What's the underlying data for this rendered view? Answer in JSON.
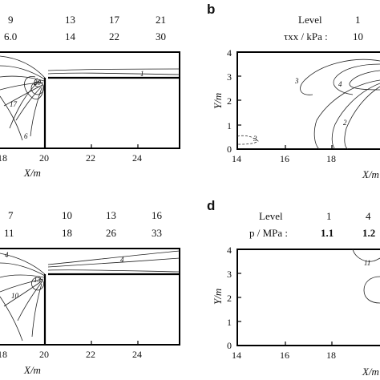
{
  "panel_a": {
    "levels_row": [
      "9",
      "13",
      "17",
      "21"
    ],
    "values_row": [
      "6.0",
      "14",
      "22",
      "30"
    ],
    "x_ticks": [
      "18",
      "20",
      "22",
      "24"
    ],
    "x_axis_label": "X/m",
    "contour_labels": [
      "1",
      "20",
      "17",
      "6"
    ]
  },
  "panel_b": {
    "label": "b",
    "levels_title": "Level",
    "values_title": "τxx / kPa :",
    "levels_row": [
      "1"
    ],
    "values_row": [
      "10"
    ],
    "y_ticks": [
      "4",
      "3",
      "2",
      "1",
      "0"
    ],
    "y_axis_label": "Y/m",
    "x_ticks": [
      "14",
      "16",
      "18"
    ],
    "x_axis_label": "X/m",
    "contour_labels": [
      "4",
      "3",
      "2",
      "3"
    ]
  },
  "panel_c": {
    "levels_row": [
      "7",
      "10",
      "13",
      "16"
    ],
    "values_row": [
      "11",
      "18",
      "26",
      "33"
    ],
    "x_ticks": [
      "18",
      "20",
      "22",
      "24"
    ],
    "x_axis_label": "X/m",
    "contour_labels": [
      "4",
      "4",
      "10",
      "13"
    ]
  },
  "panel_d": {
    "label": "d",
    "levels_title": "Level",
    "values_title": "p / MPa :",
    "levels_row": [
      "1",
      "4"
    ],
    "values_row": [
      "1.1",
      "1.2"
    ],
    "y_ticks": [
      "4",
      "3",
      "2",
      "1",
      "0"
    ],
    "y_axis_label": "Y/m",
    "x_ticks": [
      "14",
      "16",
      "18"
    ],
    "x_axis_label": "X/m",
    "contour_labels": [
      "11"
    ]
  }
}
